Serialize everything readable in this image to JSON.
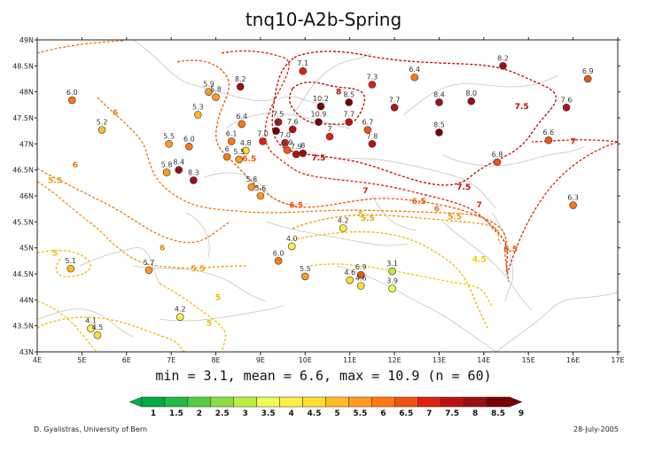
{
  "title": "tnq10-A2b-Spring",
  "stats": "min = 3.1, mean = 6.6, max = 10.9 (n = 60)",
  "credit": "D. Gyalistras, University of Bern",
  "date": "28-July-2005",
  "map": {
    "lon_range": [
      4,
      17
    ],
    "lat_range": [
      43,
      49
    ],
    "x_ticks": [
      "4E",
      "5E",
      "6E",
      "7E",
      "8E",
      "9E",
      "10E",
      "11E",
      "12E",
      "13E",
      "14E",
      "15E",
      "16E",
      "17E"
    ],
    "y_ticks": [
      "43N",
      "43.5N",
      "44N",
      "44.5N",
      "45N",
      "45.5N",
      "46N",
      "46.5N",
      "47N",
      "47.5N",
      "48N",
      "48.5N",
      "49N"
    ]
  },
  "colorbar": {
    "levels": [
      "1",
      "1.5",
      "2",
      "2.5",
      "3",
      "3.5",
      "4",
      "4.5",
      "5",
      "5.5",
      "6",
      "6.5",
      "7",
      "7.5",
      "8",
      "8.5",
      "9"
    ],
    "colors": [
      "#00aa44",
      "#22bb44",
      "#55cc44",
      "#88dd44",
      "#bbee44",
      "#eeff55",
      "#ffee44",
      "#ffdd33",
      "#ffbb22",
      "#ff9922",
      "#ff7711",
      "#ee5511",
      "#dd2211",
      "#bb1111",
      "#991111",
      "#770000"
    ]
  },
  "stations": [
    {
      "label": "6.0",
      "lon": 4.78,
      "lat": 47.84
    },
    {
      "label": "5.2",
      "lon": 5.45,
      "lat": 47.27
    },
    {
      "label": "5.9",
      "lon": 7.84,
      "lat": 48.0
    },
    {
      "label": "5.3",
      "lon": 7.6,
      "lat": 47.56
    },
    {
      "label": "8.2",
      "lon": 8.55,
      "lat": 48.1
    },
    {
      "label": "5.8",
      "lon": 8.0,
      "lat": 47.9
    },
    {
      "label": "7.1",
      "lon": 9.95,
      "lat": 48.4
    },
    {
      "label": "6.4",
      "lon": 8.58,
      "lat": 47.38
    },
    {
      "label": "5.5",
      "lon": 6.95,
      "lat": 47.0
    },
    {
      "label": "6.0",
      "lon": 7.4,
      "lat": 46.95
    },
    {
      "label": "6.1",
      "lon": 8.35,
      "lat": 47.05
    },
    {
      "label": "4.8",
      "lon": 8.67,
      "lat": 46.87
    },
    {
      "label": "6",
      "lon": 8.25,
      "lat": 46.75
    },
    {
      "label": "5.5",
      "lon": 8.52,
      "lat": 46.7
    },
    {
      "label": "5.8",
      "lon": 6.9,
      "lat": 46.45
    },
    {
      "label": "8.4",
      "lon": 7.17,
      "lat": 46.5
    },
    {
      "label": "8.3",
      "lon": 7.5,
      "lat": 46.3
    },
    {
      "label": "7.0",
      "lon": 9.05,
      "lat": 47.05
    },
    {
      "label": "7.5",
      "lon": 9.4,
      "lat": 47.42
    },
    {
      "label": "7.6",
      "lon": 9.72,
      "lat": 47.28
    },
    {
      "label": "9",
      "lon": 9.35,
      "lat": 47.25
    },
    {
      "label": "7.0",
      "lon": 9.55,
      "lat": 47.02
    },
    {
      "label": "6.9",
      "lon": 9.6,
      "lat": 46.88
    },
    {
      "label": "7.9",
      "lon": 9.8,
      "lat": 46.8
    },
    {
      "label": "8",
      "lon": 9.95,
      "lat": 46.82
    },
    {
      "label": "5.8",
      "lon": 8.8,
      "lat": 46.17
    },
    {
      "label": "5.6",
      "lon": 9.0,
      "lat": 46.0
    },
    {
      "label": "10.2",
      "lon": 10.35,
      "lat": 47.72
    },
    {
      "label": "8.5",
      "lon": 10.98,
      "lat": 47.8
    },
    {
      "label": "7.3",
      "lon": 11.5,
      "lat": 48.14
    },
    {
      "label": "10.9",
      "lon": 10.3,
      "lat": 47.42
    },
    {
      "label": "7.7",
      "lon": 10.98,
      "lat": 47.42
    },
    {
      "label": "7.7",
      "lon": 12.0,
      "lat": 47.7
    },
    {
      "label": "6.7",
      "lon": 11.4,
      "lat": 47.27
    },
    {
      "label": "7",
      "lon": 10.55,
      "lat": 47.14
    },
    {
      "label": "7.8",
      "lon": 11.5,
      "lat": 47.0
    },
    {
      "label": "6.4",
      "lon": 12.45,
      "lat": 48.28
    },
    {
      "label": "8.4",
      "lon": 13.0,
      "lat": 47.8
    },
    {
      "label": "8.0",
      "lon": 13.72,
      "lat": 47.82
    },
    {
      "label": "8.5",
      "lon": 13.0,
      "lat": 47.22
    },
    {
      "label": "8.2",
      "lon": 14.43,
      "lat": 48.5
    },
    {
      "label": "6.9",
      "lon": 16.33,
      "lat": 48.25
    },
    {
      "label": "7.6",
      "lon": 15.85,
      "lat": 47.7
    },
    {
      "label": "6.6",
      "lon": 15.45,
      "lat": 47.07
    },
    {
      "label": "6.8",
      "lon": 14.3,
      "lat": 46.65
    },
    {
      "label": "6.3",
      "lon": 16.0,
      "lat": 45.82
    },
    {
      "label": "4.2",
      "lon": 10.85,
      "lat": 45.38
    },
    {
      "label": "4.0",
      "lon": 9.7,
      "lat": 45.03
    },
    {
      "label": "6.0",
      "lon": 9.4,
      "lat": 44.75
    },
    {
      "label": "5.5",
      "lon": 10.0,
      "lat": 44.45
    },
    {
      "label": "4.6",
      "lon": 11.0,
      "lat": 44.38
    },
    {
      "label": "6.9",
      "lon": 11.25,
      "lat": 44.48
    },
    {
      "label": "4.6",
      "lon": 11.25,
      "lat": 44.27
    },
    {
      "label": "3.1",
      "lon": 11.95,
      "lat": 44.55
    },
    {
      "label": "3.9",
      "lon": 11.95,
      "lat": 44.22
    },
    {
      "label": "5.1",
      "lon": 4.75,
      "lat": 44.6
    },
    {
      "label": "5.7",
      "lon": 6.5,
      "lat": 44.57
    },
    {
      "label": "4.2",
      "lon": 7.2,
      "lat": 43.67
    },
    {
      "label": "4.1",
      "lon": 5.2,
      "lat": 43.45
    },
    {
      "label": "4.5",
      "lon": 5.35,
      "lat": 43.32
    }
  ],
  "isolines": [
    {
      "label": "8",
      "lon": 10.75,
      "lat": 48.0,
      "color": "#b50000"
    },
    {
      "label": "7.5",
      "lon": 14.85,
      "lat": 47.72,
      "color": "#c80000"
    },
    {
      "label": "7.5",
      "lon": 10.3,
      "lat": 46.73,
      "color": "#c80000"
    },
    {
      "label": "7.5",
      "lon": 13.55,
      "lat": 46.17,
      "color": "#c80000"
    },
    {
      "label": "7",
      "lon": 16.0,
      "lat": 47.05,
      "color": "#dd2200"
    },
    {
      "label": "7",
      "lon": 11.35,
      "lat": 46.1,
      "color": "#dd2200"
    },
    {
      "label": "7",
      "lon": 13.9,
      "lat": 45.83,
      "color": "#dd2200"
    },
    {
      "label": "6.5",
      "lon": 8.75,
      "lat": 46.72,
      "color": "#ee5500"
    },
    {
      "label": "6.5",
      "lon": 9.8,
      "lat": 45.82,
      "color": "#ee5500"
    },
    {
      "label": "6.5",
      "lon": 12.55,
      "lat": 45.9,
      "color": "#ee5500"
    },
    {
      "label": "6.5",
      "lon": 14.6,
      "lat": 44.98,
      "color": "#ee5500"
    },
    {
      "label": "6",
      "lon": 5.75,
      "lat": 47.6,
      "color": "#ee7700"
    },
    {
      "label": "6",
      "lon": 4.85,
      "lat": 46.6,
      "color": "#ee7700"
    },
    {
      "label": "6",
      "lon": 6.8,
      "lat": 45.0,
      "color": "#ee7700"
    },
    {
      "label": "6",
      "lon": 12.95,
      "lat": 45.75,
      "color": "#ee7700"
    },
    {
      "label": "5.5",
      "lon": 4.4,
      "lat": 46.3,
      "color": "#ee9900"
    },
    {
      "label": "5.5",
      "lon": 11.4,
      "lat": 45.57,
      "color": "#ee9900"
    },
    {
      "label": "5.5",
      "lon": 7.6,
      "lat": 44.6,
      "color": "#ee9900"
    },
    {
      "label": "5.5",
      "lon": 13.35,
      "lat": 45.6,
      "color": "#ee9900"
    },
    {
      "label": "5",
      "lon": 4.4,
      "lat": 44.9,
      "color": "#eebb00"
    },
    {
      "label": "5",
      "lon": 8.05,
      "lat": 44.05,
      "color": "#eebb00"
    },
    {
      "label": "5",
      "lon": 11.25,
      "lat": 45.65,
      "color": "#eebb00"
    },
    {
      "label": "5",
      "lon": 7.85,
      "lat": 43.55,
      "color": "#eebb00"
    },
    {
      "label": "4.5",
      "lon": 13.9,
      "lat": 44.78,
      "color": "#e6d000"
    }
  ]
}
